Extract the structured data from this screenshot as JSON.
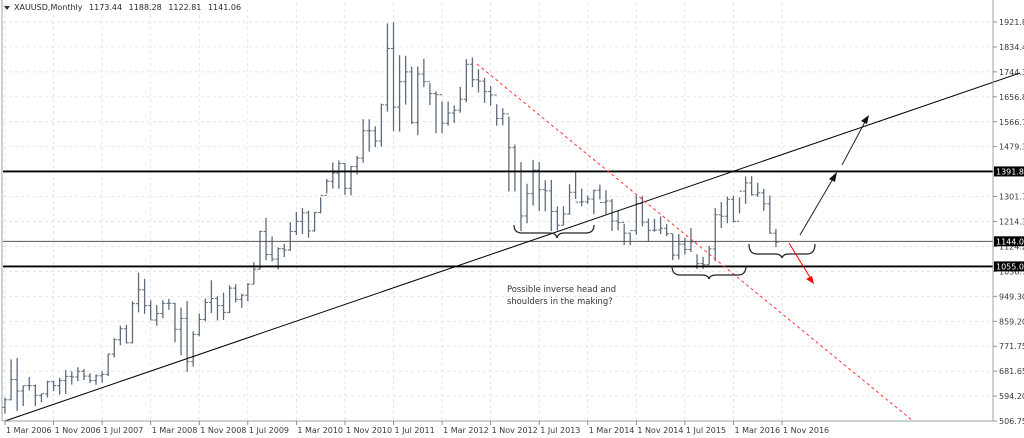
{
  "header": {
    "symbol": "XAUUSD,Monthly",
    "open": "1173.44",
    "high": "1188.28",
    "low": "1122.81",
    "close": "1141.06"
  },
  "annotation": {
    "text": "Possible inverse head and shoulders in the making?"
  },
  "colors": {
    "bars": "#5f6b7a",
    "grid": "#dcdcdc",
    "levels": "#000000",
    "level_thin": "#555555",
    "downtrend": "#ff3333",
    "arrow_down": "#ff0000",
    "axis": "#9aa3ad",
    "tag_bg": "#000000"
  },
  "chart_data": {
    "type": "ohlc",
    "title": "XAUUSD,Monthly",
    "xlabel": "",
    "ylabel": "",
    "ylim": [
      506.75,
      1921.85
    ],
    "grid": true,
    "y_ticks": [
      "1921.85",
      "1834.40",
      "1744.30",
      "1656.85",
      "1566.75",
      "1479.30",
      "1391.85",
      "1301.75",
      "1214.30",
      "1124.20",
      "1036.75",
      "949.30",
      "859.20",
      "771.75",
      "681.65",
      "594.20",
      "506.75"
    ],
    "x_ticks": [
      "1 Mar 2006",
      "1 Nov 2006",
      "1 Jul 2007",
      "1 Mar 2008",
      "1 Nov 2008",
      "1 Jul 2009",
      "1 Mar 2010",
      "1 Nov 2010",
      "1 Jul 2011",
      "1 Mar 2012",
      "1 Nov 2012",
      "1 Jul 2013",
      "1 Mar 2014",
      "1 Nov 2014",
      "1 Jul 2015",
      "1 Mar 2016",
      "1 Nov 2016"
    ],
    "horizontal_levels": [
      {
        "price": 1391.85,
        "label": "1391.85",
        "style": "thick"
      },
      {
        "price": 1144.0,
        "label": "1144.00",
        "style": "thin"
      },
      {
        "price": 1055.0,
        "label": "1055.00",
        "style": "thick"
      }
    ],
    "trendlines": [
      {
        "name": "long-term uptrend",
        "from": {
          "x": 5,
          "y": 421
        },
        "to": {
          "x": 1020,
          "y": 73
        },
        "color": "#000000"
      },
      {
        "name": "downtrend",
        "from": {
          "x": 477,
          "y": 64
        },
        "to": {
          "x": 913,
          "y": 421
        },
        "color": "#ff3333",
        "dashed": true
      }
    ],
    "start_month": "2006-03",
    "series": [
      {
        "name": "XAUUSD",
        "ohlc": [
          [
            555,
            590,
            533,
            582
          ],
          [
            582,
            725,
            580,
            654
          ],
          [
            654,
            730,
            543,
            613
          ],
          [
            613,
            633,
            560,
            632
          ],
          [
            632,
            663,
            615,
            632
          ],
          [
            632,
            636,
            560,
            598
          ],
          [
            598,
            604,
            573,
            603
          ],
          [
            603,
            650,
            590,
            646
          ],
          [
            646,
            650,
            613,
            632
          ],
          [
            632,
            660,
            600,
            650
          ],
          [
            650,
            687,
            603,
            665
          ],
          [
            665,
            683,
            636,
            663
          ],
          [
            663,
            697,
            648,
            683
          ],
          [
            683,
            691,
            652,
            666
          ],
          [
            666,
            676,
            642,
            650
          ],
          [
            650,
            672,
            635,
            667
          ],
          [
            667,
            683,
            643,
            672
          ],
          [
            672,
            746,
            666,
            744
          ],
          [
            744,
            800,
            732,
            795
          ],
          [
            795,
            845,
            775,
            834
          ],
          [
            834,
            848,
            782,
            784
          ],
          [
            784,
            931,
            782,
            923
          ],
          [
            923,
            1033,
            892,
            972
          ],
          [
            972,
            1011,
            887,
            916
          ],
          [
            916,
            935,
            866,
            865
          ],
          [
            865,
            918,
            845,
            888
          ],
          [
            888,
            935,
            871,
            924
          ],
          [
            924,
            940,
            901,
            924
          ],
          [
            924,
            926,
            786,
            832
          ],
          [
            832,
            909,
            740,
            871
          ],
          [
            871,
            933,
            681,
            717
          ],
          [
            717,
            825,
            700,
            814
          ],
          [
            814,
            888,
            807,
            867
          ],
          [
            867,
            941,
            860,
            927
          ],
          [
            927,
            1006,
            890,
            941
          ],
          [
            941,
            950,
            863,
            916
          ],
          [
            916,
            962,
            865,
            892
          ],
          [
            892,
            988,
            889,
            978
          ],
          [
            978,
            992,
            927,
            938
          ],
          [
            938,
            958,
            908,
            953
          ],
          [
            953,
            996,
            931,
            992
          ],
          [
            992,
            1070,
            992,
            1045
          ],
          [
            1045,
            1182,
            1044,
            1179
          ],
          [
            1179,
            1227,
            1077,
            1097
          ],
          [
            1097,
            1161,
            1072,
            1081
          ],
          [
            1081,
            1123,
            1044,
            1118
          ],
          [
            1118,
            1135,
            1088,
            1113
          ],
          [
            1113,
            1212,
            1110,
            1179
          ],
          [
            1179,
            1249,
            1166,
            1215
          ],
          [
            1215,
            1262,
            1170,
            1245
          ],
          [
            1245,
            1253,
            1157,
            1181
          ],
          [
            1181,
            1248,
            1178,
            1246
          ],
          [
            1246,
            1300,
            1243,
            1307
          ],
          [
            1307,
            1365,
            1314,
            1357
          ],
          [
            1357,
            1424,
            1331,
            1386
          ],
          [
            1386,
            1431,
            1330,
            1420
          ],
          [
            1420,
            1421,
            1309,
            1332
          ],
          [
            1332,
            1411,
            1307,
            1409
          ],
          [
            1409,
            1447,
            1381,
            1439
          ],
          [
            1439,
            1577,
            1423,
            1536
          ],
          [
            1536,
            1577,
            1462,
            1536
          ],
          [
            1536,
            1552,
            1478,
            1500
          ],
          [
            1500,
            1632,
            1480,
            1628
          ],
          [
            1628,
            1917,
            1604,
            1828
          ],
          [
            1828,
            1921,
            1535,
            1620
          ],
          [
            1620,
            1804,
            1533,
            1710
          ],
          [
            1710,
            1802,
            1629,
            1745
          ],
          [
            1745,
            1764,
            1560,
            1565
          ],
          [
            1565,
            1764,
            1520,
            1737
          ],
          [
            1737,
            1791,
            1691,
            1710
          ],
          [
            1710,
            1705,
            1627,
            1668
          ],
          [
            1668,
            1676,
            1527,
            1664
          ],
          [
            1664,
            1640,
            1527,
            1563
          ],
          [
            1563,
            1640,
            1554,
            1599
          ],
          [
            1599,
            1626,
            1564,
            1609
          ],
          [
            1609,
            1692,
            1600,
            1648
          ],
          [
            1648,
            1790,
            1637,
            1772
          ],
          [
            1772,
            1796,
            1691,
            1717
          ],
          [
            1717,
            1754,
            1672,
            1712
          ],
          [
            1712,
            1724,
            1635,
            1675
          ],
          [
            1675,
            1695,
            1625,
            1663
          ],
          [
            1663,
            1630,
            1554,
            1580
          ],
          [
            1580,
            1616,
            1555,
            1596
          ],
          [
            1596,
            1587,
            1321,
            1476
          ],
          [
            1476,
            1487,
            1321,
            1393
          ],
          [
            1393,
            1425,
            1180,
            1234
          ],
          [
            1234,
            1348,
            1208,
            1313
          ],
          [
            1313,
            1433,
            1271,
            1396
          ],
          [
            1396,
            1425,
            1251,
            1327
          ],
          [
            1327,
            1361,
            1251,
            1323
          ],
          [
            1323,
            1362,
            1180,
            1250
          ],
          [
            1250,
            1268,
            1182,
            1201
          ],
          [
            1201,
            1268,
            1200,
            1241
          ],
          [
            1241,
            1347,
            1238,
            1318
          ],
          [
            1318,
            1392,
            1294,
            1283
          ],
          [
            1283,
            1331,
            1268,
            1284
          ],
          [
            1284,
            1306,
            1277,
            1294
          ],
          [
            1294,
            1327,
            1240,
            1325
          ],
          [
            1325,
            1345,
            1293,
            1282
          ],
          [
            1282,
            1325,
            1240,
            1287
          ],
          [
            1287,
            1294,
            1181,
            1216
          ],
          [
            1216,
            1255,
            1183,
            1211
          ],
          [
            1211,
            1206,
            1131,
            1173
          ],
          [
            1173,
            1173,
            1130,
            1182
          ],
          [
            1182,
            1307,
            1167,
            1278
          ],
          [
            1278,
            1305,
            1197,
            1212
          ],
          [
            1212,
            1225,
            1143,
            1183
          ],
          [
            1183,
            1224,
            1178,
            1184
          ],
          [
            1184,
            1232,
            1170,
            1190
          ],
          [
            1190,
            1205,
            1162,
            1171
          ],
          [
            1171,
            1170,
            1077,
            1095
          ],
          [
            1095,
            1170,
            1080,
            1134
          ],
          [
            1134,
            1157,
            1097,
            1115
          ],
          [
            1115,
            1191,
            1106,
            1142
          ],
          [
            1142,
            1098,
            1046,
            1065
          ],
          [
            1065,
            1089,
            1046,
            1061
          ],
          [
            1061,
            1128,
            1062,
            1117
          ],
          [
            1117,
            1262,
            1073,
            1238
          ],
          [
            1238,
            1283,
            1191,
            1233
          ],
          [
            1233,
            1303,
            1208,
            1293
          ],
          [
            1293,
            1306,
            1210,
            1215
          ],
          [
            1215,
            1300,
            1243,
            1322
          ],
          [
            1322,
            1374,
            1277,
            1351
          ],
          [
            1351,
            1375,
            1306,
            1309
          ],
          [
            1309,
            1352,
            1302,
            1316
          ],
          [
            1316,
            1330,
            1252,
            1277
          ],
          [
            1277,
            1307,
            1171,
            1173
          ],
          [
            1173,
            1188,
            1123,
            1141
          ]
        ]
      }
    ]
  },
  "axis": {
    "price_tags": [
      "1391.85",
      "1144.00",
      "1055.00"
    ]
  }
}
